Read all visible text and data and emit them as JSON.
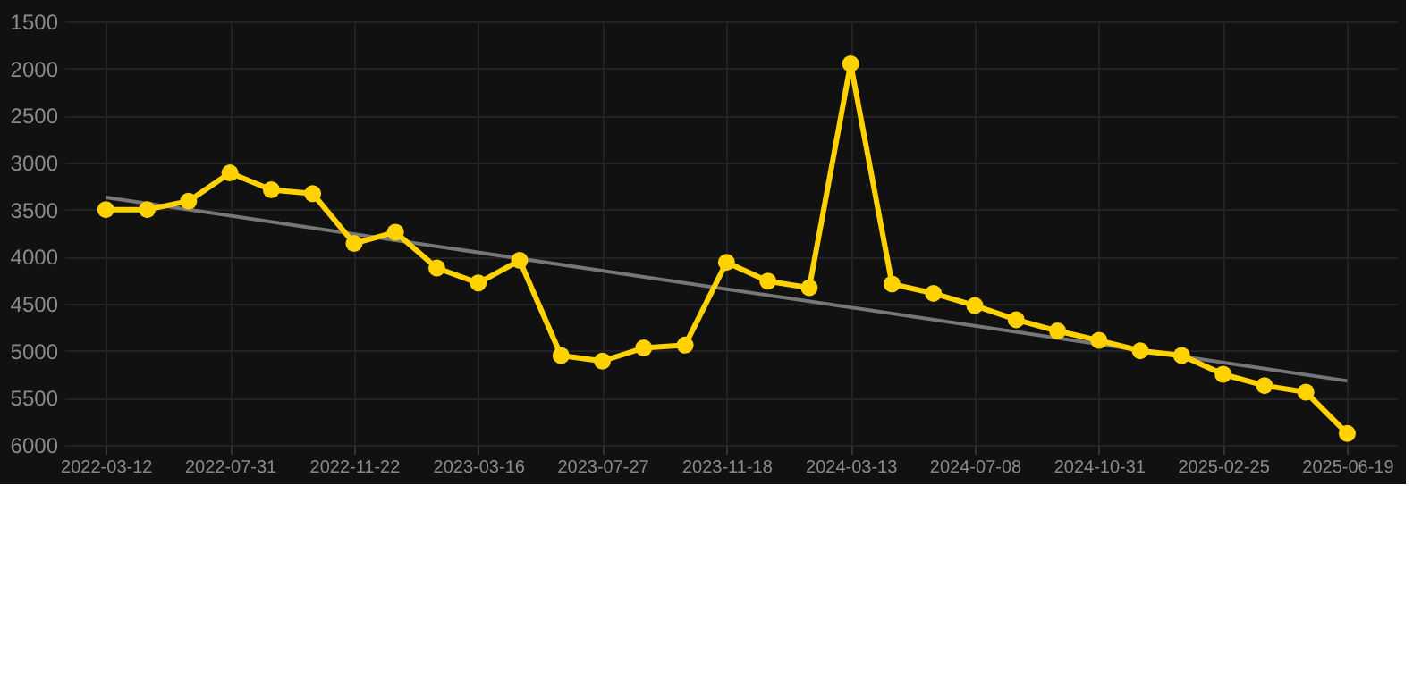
{
  "chart_data": {
    "type": "line",
    "categories": [
      "2022-03-12",
      null,
      null,
      "2022-07-31",
      null,
      null,
      "2022-11-22",
      null,
      null,
      "2023-03-16",
      null,
      null,
      "2023-07-27",
      null,
      null,
      "2023-11-18",
      null,
      null,
      "2024-03-13",
      null,
      null,
      "2024-07-08",
      null,
      null,
      "2024-10-31",
      null,
      null,
      "2025-02-25",
      null,
      null,
      "2025-06-19"
    ],
    "series": [
      {
        "color": "#ffd200",
        "marker": "circle",
        "values": [
          3500,
          3500,
          3410,
          3110,
          3290,
          3330,
          3860,
          3740,
          4120,
          4280,
          4040,
          5050,
          5110,
          4970,
          4940,
          4060,
          4260,
          4330,
          1950,
          4290,
          4390,
          4520,
          4670,
          4790,
          4890,
          5000,
          5050,
          5250,
          5370,
          5440,
          5880
        ]
      },
      {
        "type": "line",
        "color": "#777777",
        "marker": "none",
        "values": [
          3370,
          null,
          null,
          null,
          null,
          null,
          null,
          null,
          null,
          null,
          null,
          null,
          null,
          null,
          null,
          null,
          null,
          null,
          null,
          null,
          null,
          null,
          null,
          null,
          null,
          null,
          null,
          null,
          null,
          null,
          5320
        ]
      }
    ],
    "ylim": [
      6000,
      1500
    ],
    "yticks": [
      1500,
      2000,
      2500,
      3000,
      3500,
      4000,
      4500,
      5000,
      5500,
      6000
    ],
    "grid": true
  }
}
